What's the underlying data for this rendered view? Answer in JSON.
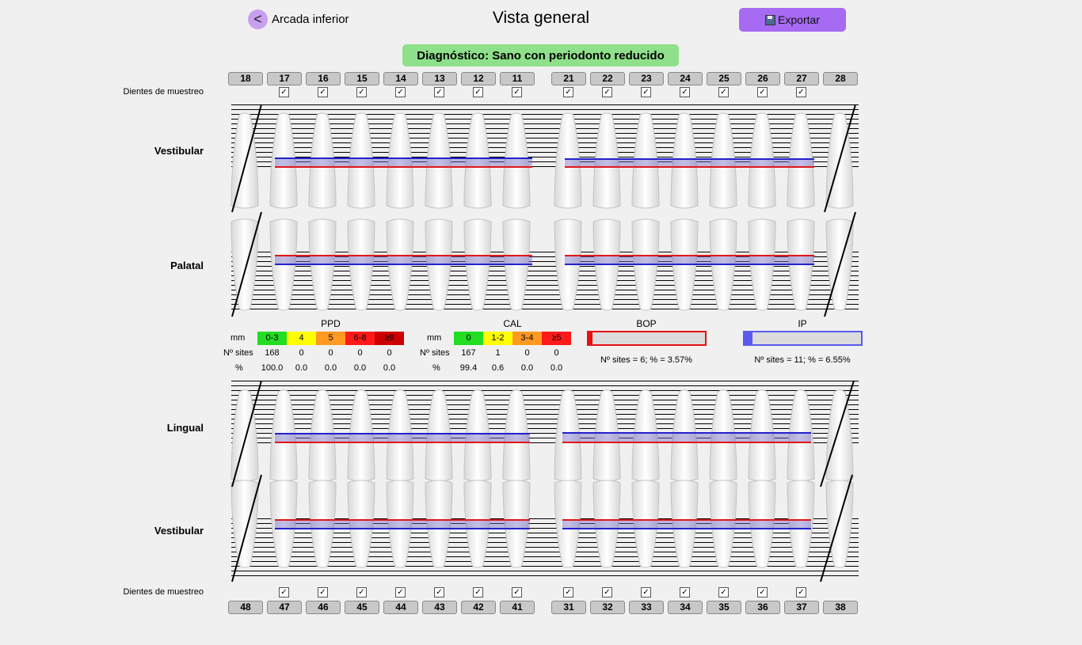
{
  "header": {
    "back_label": "Arcada inferior",
    "back_icon": "chevron-left-icon",
    "title": "Vista general",
    "export_label": "Exportar",
    "export_icon": "save-icon"
  },
  "diagnosis": "Diagnóstico: Sano con periodonto reducido",
  "sample_label": "Dientes de muestreo",
  "upper_teeth": [
    "18",
    "17",
    "16",
    "15",
    "14",
    "13",
    "12",
    "11",
    "21",
    "22",
    "23",
    "24",
    "25",
    "26",
    "27",
    "28"
  ],
  "lower_teeth": [
    "48",
    "47",
    "46",
    "45",
    "44",
    "43",
    "42",
    "41",
    "31",
    "32",
    "33",
    "34",
    "35",
    "36",
    "37",
    "38"
  ],
  "upper_checked": [
    false,
    true,
    true,
    true,
    true,
    true,
    true,
    true,
    true,
    true,
    true,
    true,
    true,
    true,
    true,
    false
  ],
  "lower_checked": [
    false,
    true,
    true,
    true,
    true,
    true,
    true,
    true,
    true,
    true,
    true,
    true,
    true,
    true,
    true,
    false
  ],
  "row_labels": {
    "upper_buccal": "Vestibular",
    "upper_palatal": "Palatal",
    "lower_lingual": "Lingual",
    "lower_buccal": "Vestibular"
  },
  "stats": {
    "mm_label": "mm",
    "sites_label": "Nº sites",
    "pct_label": "%",
    "ppd": {
      "title": "PPD",
      "bins": [
        "0-3",
        "4",
        "5",
        "6-8",
        "≥9"
      ],
      "colors": [
        "#22dd22",
        "#ffff00",
        "#ff9922",
        "#ff1a1a",
        "#cc0000"
      ],
      "sites": [
        "168",
        "0",
        "0",
        "0",
        "0"
      ],
      "pct": [
        "100.0",
        "0.0",
        "0.0",
        "0.0",
        "0.0"
      ]
    },
    "cal": {
      "title": "CAL",
      "bins": [
        "0",
        "1-2",
        "3-4",
        "≥5"
      ],
      "colors": [
        "#22dd22",
        "#ffff00",
        "#ff9922",
        "#ff1a1a"
      ],
      "sites": [
        "167",
        "1",
        "0",
        "0"
      ],
      "pct": [
        "99.4",
        "0.6",
        "0.0",
        "0.0"
      ]
    },
    "bop": {
      "title": "BOP",
      "summary": "Nº sites = 6; % = 3.57%",
      "fraction": 0.0357,
      "color": "#e81010"
    },
    "ip": {
      "title": "IP",
      "summary": "Nº sites = 11; % = 6.55%",
      "fraction": 0.0655,
      "color": "#5a5aee"
    }
  }
}
